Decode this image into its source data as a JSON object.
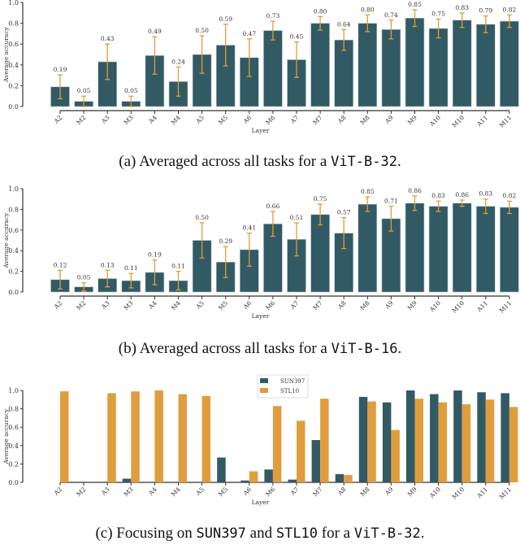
{
  "colors": {
    "bar": "#325a64",
    "error": "#e39b36",
    "stl": "#e09d3e"
  },
  "chart_data": [
    {
      "type": "bar",
      "xlabel": "Layer",
      "ylabel": "Average accuracy",
      "ylim": [
        0,
        1.0
      ],
      "yticks": [
        "0.0",
        "0.2",
        "0.4",
        "0.6",
        "0.8",
        "1.0"
      ],
      "categories": [
        "A2",
        "M2",
        "A3",
        "M3",
        "A4",
        "M4",
        "A5",
        "M5",
        "A6",
        "M6",
        "A7",
        "M7",
        "A8",
        "M8",
        "A9",
        "M9",
        "A10",
        "M10",
        "A11",
        "M11"
      ],
      "values": [
        0.19,
        0.05,
        0.43,
        0.05,
        0.49,
        0.24,
        0.5,
        0.59,
        0.47,
        0.73,
        0.45,
        0.8,
        0.64,
        0.8,
        0.74,
        0.85,
        0.75,
        0.83,
        0.79,
        0.82
      ],
      "value_labels": [
        "0.19",
        "0.05",
        "0.43",
        "0.05",
        "0.49",
        "0.24",
        "0.50",
        "0.59",
        "0.47",
        "0.73",
        "0.45",
        "0.80",
        "0.64",
        "0.80",
        "0.74",
        "0.85",
        "0.75",
        "0.83",
        "0.79",
        "0.82"
      ],
      "errors": [
        0.115,
        0.05,
        0.17,
        0.05,
        0.18,
        0.14,
        0.18,
        0.2,
        0.18,
        0.09,
        0.17,
        0.065,
        0.1,
        0.08,
        0.09,
        0.08,
        0.09,
        0.07,
        0.08,
        0.06
      ]
    },
    {
      "type": "bar",
      "xlabel": "Layer",
      "ylabel": "Average accuracy",
      "ylim": [
        0,
        1.0
      ],
      "yticks": [
        "0.0",
        "0.2",
        "0.4",
        "0.6",
        "0.8",
        "1.0"
      ],
      "categories": [
        "A2",
        "M2",
        "A3",
        "M3",
        "A4",
        "M4",
        "A5",
        "M5",
        "A6",
        "M6",
        "A7",
        "M7",
        "A8",
        "M8",
        "A9",
        "M9",
        "A10",
        "M10",
        "A11",
        "M11"
      ],
      "values": [
        0.12,
        0.05,
        0.13,
        0.11,
        0.19,
        0.11,
        0.5,
        0.29,
        0.41,
        0.66,
        0.51,
        0.75,
        0.57,
        0.85,
        0.71,
        0.86,
        0.83,
        0.86,
        0.83,
        0.82
      ],
      "value_labels": [
        "0.12",
        "0.05",
        "0.13",
        "0.11",
        "0.19",
        "0.11",
        "0.50",
        "0.29",
        "0.41",
        "0.66",
        "0.51",
        "0.75",
        "0.57",
        "0.85",
        "0.71",
        "0.86",
        "0.83",
        "0.86",
        "0.83",
        "0.82"
      ],
      "errors": [
        0.09,
        0.04,
        0.08,
        0.07,
        0.12,
        0.09,
        0.17,
        0.15,
        0.16,
        0.12,
        0.16,
        0.1,
        0.15,
        0.07,
        0.12,
        0.07,
        0.05,
        0.03,
        0.07,
        0.06
      ]
    },
    {
      "type": "bar",
      "xlabel": "Layer",
      "ylabel": "Average accuracy",
      "ylim": [
        0,
        1.0
      ],
      "yticks": [
        "0.0",
        "0.2",
        "0.4",
        "0.6",
        "0.8",
        "1.0"
      ],
      "legend_position": "top-center",
      "categories": [
        "A2",
        "M2",
        "A3",
        "M3",
        "A4",
        "M4",
        "A5",
        "M5",
        "A6",
        "M6",
        "A7",
        "M7",
        "A8",
        "M8",
        "A9",
        "M9",
        "A10",
        "M10",
        "A11",
        "M11"
      ],
      "series": [
        {
          "name": "SUN397",
          "values": [
            0.0,
            0.0,
            0.0,
            0.04,
            0.0,
            0.0,
            0.0,
            0.27,
            0.02,
            0.14,
            0.03,
            0.46,
            0.09,
            0.93,
            0.87,
            1.0,
            0.96,
            1.0,
            0.98,
            0.97
          ]
        },
        {
          "name": "STL10",
          "values": [
            0.99,
            0.0,
            0.97,
            0.99,
            1.0,
            0.96,
            0.94,
            0.0,
            0.12,
            0.83,
            0.67,
            0.91,
            0.08,
            0.88,
            0.57,
            0.91,
            0.87,
            0.85,
            0.9,
            0.82
          ]
        }
      ]
    }
  ],
  "captions": [
    {
      "prefix": "(a) Averaged across all tasks for a ",
      "mono": "ViT-B-32",
      "suffix": "."
    },
    {
      "prefix": "(b) Averaged across all tasks for a ",
      "mono": "ViT-B-16",
      "suffix": "."
    },
    {
      "prefix": "(c) Focusing on ",
      "mono": "SUN397",
      "mid": " and ",
      "mono2": "STL10",
      "mid2": " for a ",
      "mono3": "ViT-B-32",
      "suffix": "."
    }
  ]
}
